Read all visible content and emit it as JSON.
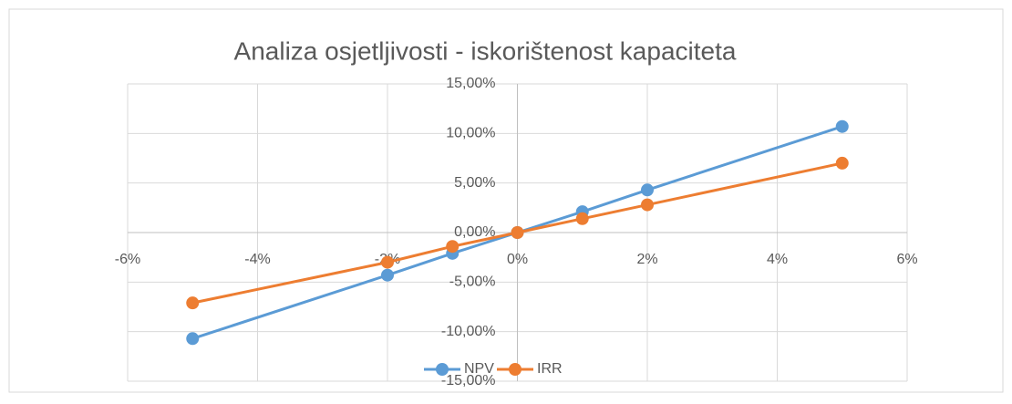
{
  "chart_data": {
    "type": "scatter",
    "title": "Analiza osjetljivosti - iskorištenost kapaciteta",
    "x": [
      -5,
      -2,
      -1,
      0,
      1,
      2,
      5
    ],
    "series": [
      {
        "name": "NPV",
        "color": "#5b9bd5",
        "values": [
          -10.7,
          -4.3,
          -2.1,
          0,
          2.1,
          4.3,
          10.7
        ]
      },
      {
        "name": "IRR",
        "color": "#ed7d31",
        "values": [
          -7.1,
          -3.0,
          -1.4,
          0,
          1.4,
          2.8,
          7.0
        ]
      }
    ],
    "xlim": [
      -6,
      6
    ],
    "xticks": [
      {
        "value": -6,
        "label": "-6%"
      },
      {
        "value": -4,
        "label": "-4%"
      },
      {
        "value": -2,
        "label": "-2%"
      },
      {
        "value": 0,
        "label": "0%"
      },
      {
        "value": 2,
        "label": "2%"
      },
      {
        "value": 4,
        "label": "4%"
      },
      {
        "value": 6,
        "label": "6%"
      }
    ],
    "ylim": [
      -15,
      15
    ],
    "yticks": [
      {
        "value": -15,
        "label": "-15,00%"
      },
      {
        "value": -10,
        "label": "-10,00%"
      },
      {
        "value": -5,
        "label": "-5,00%"
      },
      {
        "value": 0,
        "label": "0,00%"
      },
      {
        "value": 5,
        "label": "5,00%"
      },
      {
        "value": 10,
        "label": "10,00%"
      },
      {
        "value": 15,
        "label": "15,00%"
      }
    ],
    "grid": true,
    "legend": "bottom"
  }
}
